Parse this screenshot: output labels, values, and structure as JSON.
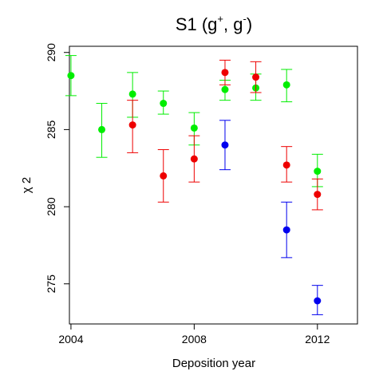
{
  "chart_data": {
    "type": "scatter",
    "title": {
      "main": "S1  (g",
      "sup1": "+",
      "mid": ", g",
      "sup2": "-",
      "end": ")"
    },
    "xlabel": "Deposition year",
    "ylabel": "χ 2",
    "xlim": [
      2003.95,
      2013.3
    ],
    "ylim": [
      272.4,
      290.4
    ],
    "xticks": [
      2004,
      2008,
      2012
    ],
    "yticks": [
      275,
      280,
      285,
      290
    ],
    "grid": false,
    "series": [
      {
        "color": "#00ee00",
        "points": [
          {
            "x": 2004,
            "y": 288.5,
            "lo": 287.2,
            "hi": 289.8
          },
          {
            "x": 2005,
            "y": 285.0,
            "lo": 283.2,
            "hi": 286.7
          },
          {
            "x": 2006,
            "y": 287.3,
            "lo": 285.8,
            "hi": 288.7
          },
          {
            "x": 2007,
            "y": 286.7,
            "lo": 286.0,
            "hi": 287.5
          },
          {
            "x": 2008,
            "y": 285.1,
            "lo": 284.0,
            "hi": 286.1
          },
          {
            "x": 2009,
            "y": 287.6,
            "lo": 286.9,
            "hi": 288.2
          },
          {
            "x": 2010,
            "y": 287.7,
            "lo": 286.9,
            "hi": 288.6
          },
          {
            "x": 2011,
            "y": 287.9,
            "lo": 286.8,
            "hi": 288.9
          },
          {
            "x": 2012,
            "y": 282.3,
            "lo": 281.3,
            "hi": 283.4
          }
        ]
      },
      {
        "color": "#ee0000",
        "points": [
          {
            "x": 2006,
            "y": 285.3,
            "lo": 283.5,
            "hi": 286.9
          },
          {
            "x": 2007,
            "y": 282.0,
            "lo": 280.3,
            "hi": 283.7
          },
          {
            "x": 2008,
            "y": 283.1,
            "lo": 281.6,
            "hi": 284.6
          },
          {
            "x": 2009,
            "y": 288.7,
            "lo": 287.9,
            "hi": 289.5
          },
          {
            "x": 2010,
            "y": 288.4,
            "lo": 287.4,
            "hi": 289.4
          },
          {
            "x": 2011,
            "y": 282.7,
            "lo": 281.6,
            "hi": 283.9
          },
          {
            "x": 2012,
            "y": 280.8,
            "lo": 279.8,
            "hi": 281.8
          }
        ]
      },
      {
        "color": "#0000ee",
        "points": [
          {
            "x": 2009,
            "y": 284.0,
            "lo": 282.4,
            "hi": 285.6
          },
          {
            "x": 2011,
            "y": 278.5,
            "lo": 276.7,
            "hi": 280.3
          },
          {
            "x": 2012,
            "y": 273.9,
            "lo": 273.0,
            "hi": 274.9
          }
        ]
      }
    ]
  }
}
